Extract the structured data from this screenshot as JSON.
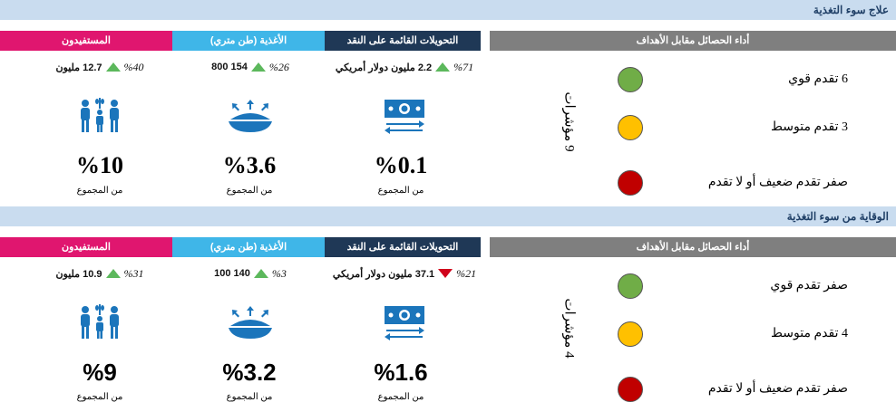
{
  "sections": [
    {
      "title": "علاج سوء التغذية",
      "headers": {
        "beneficiaries": "المستفيدون",
        "food": "الأغذية (طن متري)",
        "cash": "التحويلات القائمة على النقد",
        "performance": "أداء الحصائل مقابل الأهداف"
      },
      "beneficiaries": {
        "value": "12.7 مليون",
        "change": "%40",
        "trend": "up",
        "share": "%10",
        "share_label": "من المجموع"
      },
      "food": {
        "value": "154 800",
        "change": "%26",
        "trend": "up",
        "share": "%3.6",
        "share_label": "من المجموع"
      },
      "cash": {
        "value": "2.2 مليون دولار أمريكي",
        "change": "%71",
        "trend": "up",
        "share": "%0.1",
        "share_label": "من المجموع"
      },
      "indicators": "9 مؤشرات",
      "progress": [
        {
          "label": "6 تقدم قوي",
          "color": "#70ad47"
        },
        {
          "label": "3 تقدم متوسط",
          "color": "#ffc000"
        },
        {
          "label": "صفر تقدم ضعيف أو لا تقدم",
          "color": "#c00000"
        }
      ]
    },
    {
      "title": "الوقاية من سوء التغذية",
      "headers": {
        "beneficiaries": "المستفيدون",
        "food": "الأغذية (طن متري)",
        "cash": "التحويلات القائمة على النقد",
        "performance": "أداء الحصائل مقابل الأهداف"
      },
      "beneficiaries": {
        "value": "10.9 مليون",
        "change": "%31",
        "trend": "up",
        "share": "%9",
        "share_label": "من المجموع"
      },
      "food": {
        "value": "140 100",
        "change": "%3",
        "trend": "up",
        "share": "%3.2",
        "share_label": "من المجموع"
      },
      "cash": {
        "value": "37.1 مليون دولار أمريكي",
        "change": "%21",
        "trend": "down",
        "share": "%1.6",
        "share_label": "من المجموع"
      },
      "indicators": "4 مؤشرات",
      "progress": [
        {
          "label": "صفر تقدم قوي",
          "color": "#70ad47"
        },
        {
          "label": "4 تقدم متوسط",
          "color": "#ffc000"
        },
        {
          "label": "صفر تقدم ضعيف أو لا تقدم",
          "color": "#c00000"
        }
      ]
    }
  ]
}
